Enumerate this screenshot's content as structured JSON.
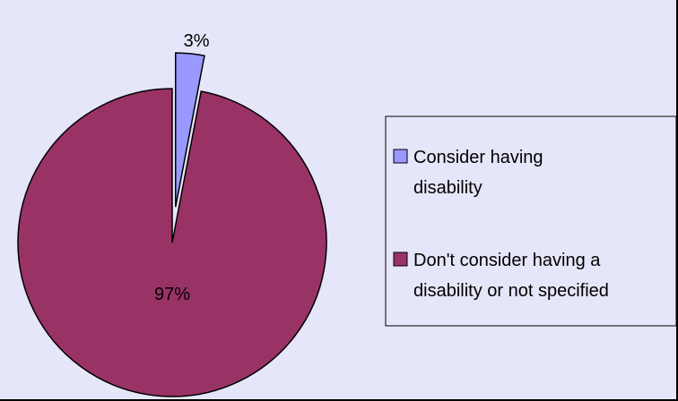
{
  "chart_data": {
    "type": "pie",
    "title": "",
    "categories": [
      "Consider having disability",
      "Don't consider having a disability or not specified"
    ],
    "values": [
      3,
      97
    ],
    "labels": [
      "3%",
      "97%"
    ],
    "colors": [
      "#9999FF",
      "#993366"
    ],
    "background": "#E6E6FA",
    "exploded_slice": 0,
    "legend": {
      "position": "right",
      "entries": [
        {
          "lines": [
            "Consider having",
            "disability"
          ],
          "color": "#9999FF"
        },
        {
          "lines": [
            "Don't consider having a",
            "disability or not specified"
          ],
          "color": "#993366"
        }
      ]
    }
  }
}
